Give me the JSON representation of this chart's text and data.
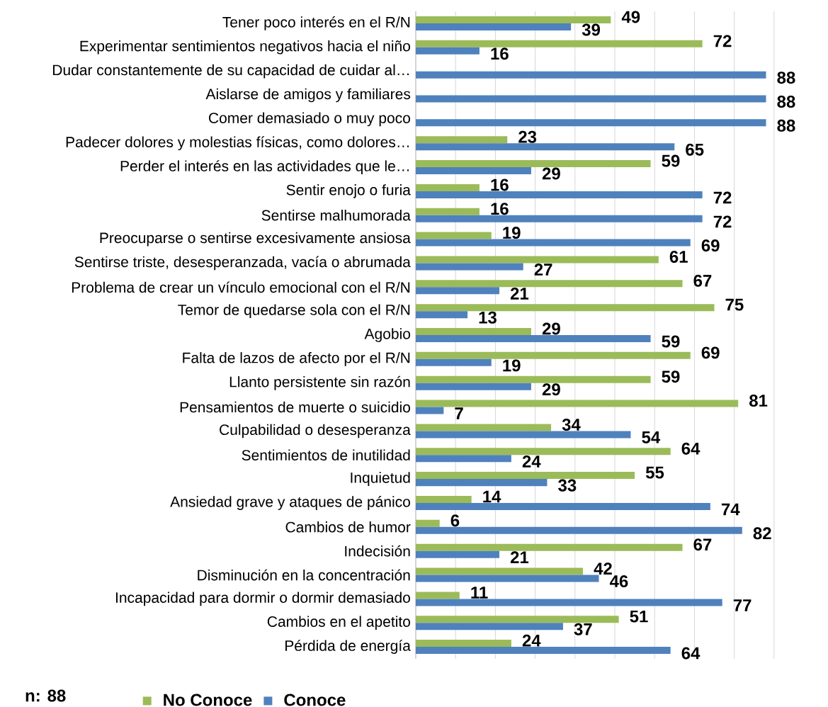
{
  "chart_data": {
    "type": "bar",
    "orientation": "horizontal",
    "categories": [
      "Tener poco interés en el R/N",
      "Experimentar sentimientos negativos hacia el niño",
      "Dudar constantemente de su capacidad de cuidar al…",
      "Aislarse de amigos y familiares",
      "Comer demasiado o muy poco",
      "Padecer dolores y molestias físicas, como dolores…",
      "Perder el interés en las actividades que le…",
      "Sentir enojo o furia",
      "Sentirse malhumorada",
      "Preocuparse o sentirse excesivamente ansiosa",
      "Sentirse triste, desesperanzada, vacía o abrumada",
      "Problema de crear un vínculo emocional con el R/N",
      "Temor de quedarse sola con el R/N",
      "Agobio",
      "Falta de lazos de afecto por el R/N",
      "Llanto persistente sin razón",
      "Pensamientos de muerte o suicidio",
      "Culpabilidad o desesperanza",
      "Sentimientos de inutilidad",
      "Inquietud",
      "Ansiedad grave y ataques de pánico",
      "Cambios de humor",
      "Indecisión",
      "Disminución en la concentración",
      "Incapacidad para dormir o dormir demasiado",
      "Cambios en el apetito",
      "Pérdida de energía"
    ],
    "series": [
      {
        "name": "No Conoce",
        "color": "#9bbb59",
        "values": [
          49,
          72,
          null,
          null,
          null,
          23,
          59,
          16,
          16,
          19,
          61,
          67,
          75,
          29,
          69,
          59,
          81,
          34,
          64,
          55,
          14,
          6,
          67,
          42,
          11,
          51,
          24
        ]
      },
      {
        "name": "Conoce",
        "color": "#4f81bd",
        "values": [
          39,
          16,
          88,
          88,
          88,
          65,
          29,
          72,
          72,
          69,
          27,
          21,
          13,
          59,
          19,
          29,
          7,
          54,
          24,
          33,
          74,
          82,
          21,
          46,
          77,
          37,
          64
        ]
      }
    ],
    "grid": "x",
    "tick_labels": "y",
    "data_labels": true,
    "legend": "bottom",
    "annotations": [
      "n: 88"
    ]
  }
}
